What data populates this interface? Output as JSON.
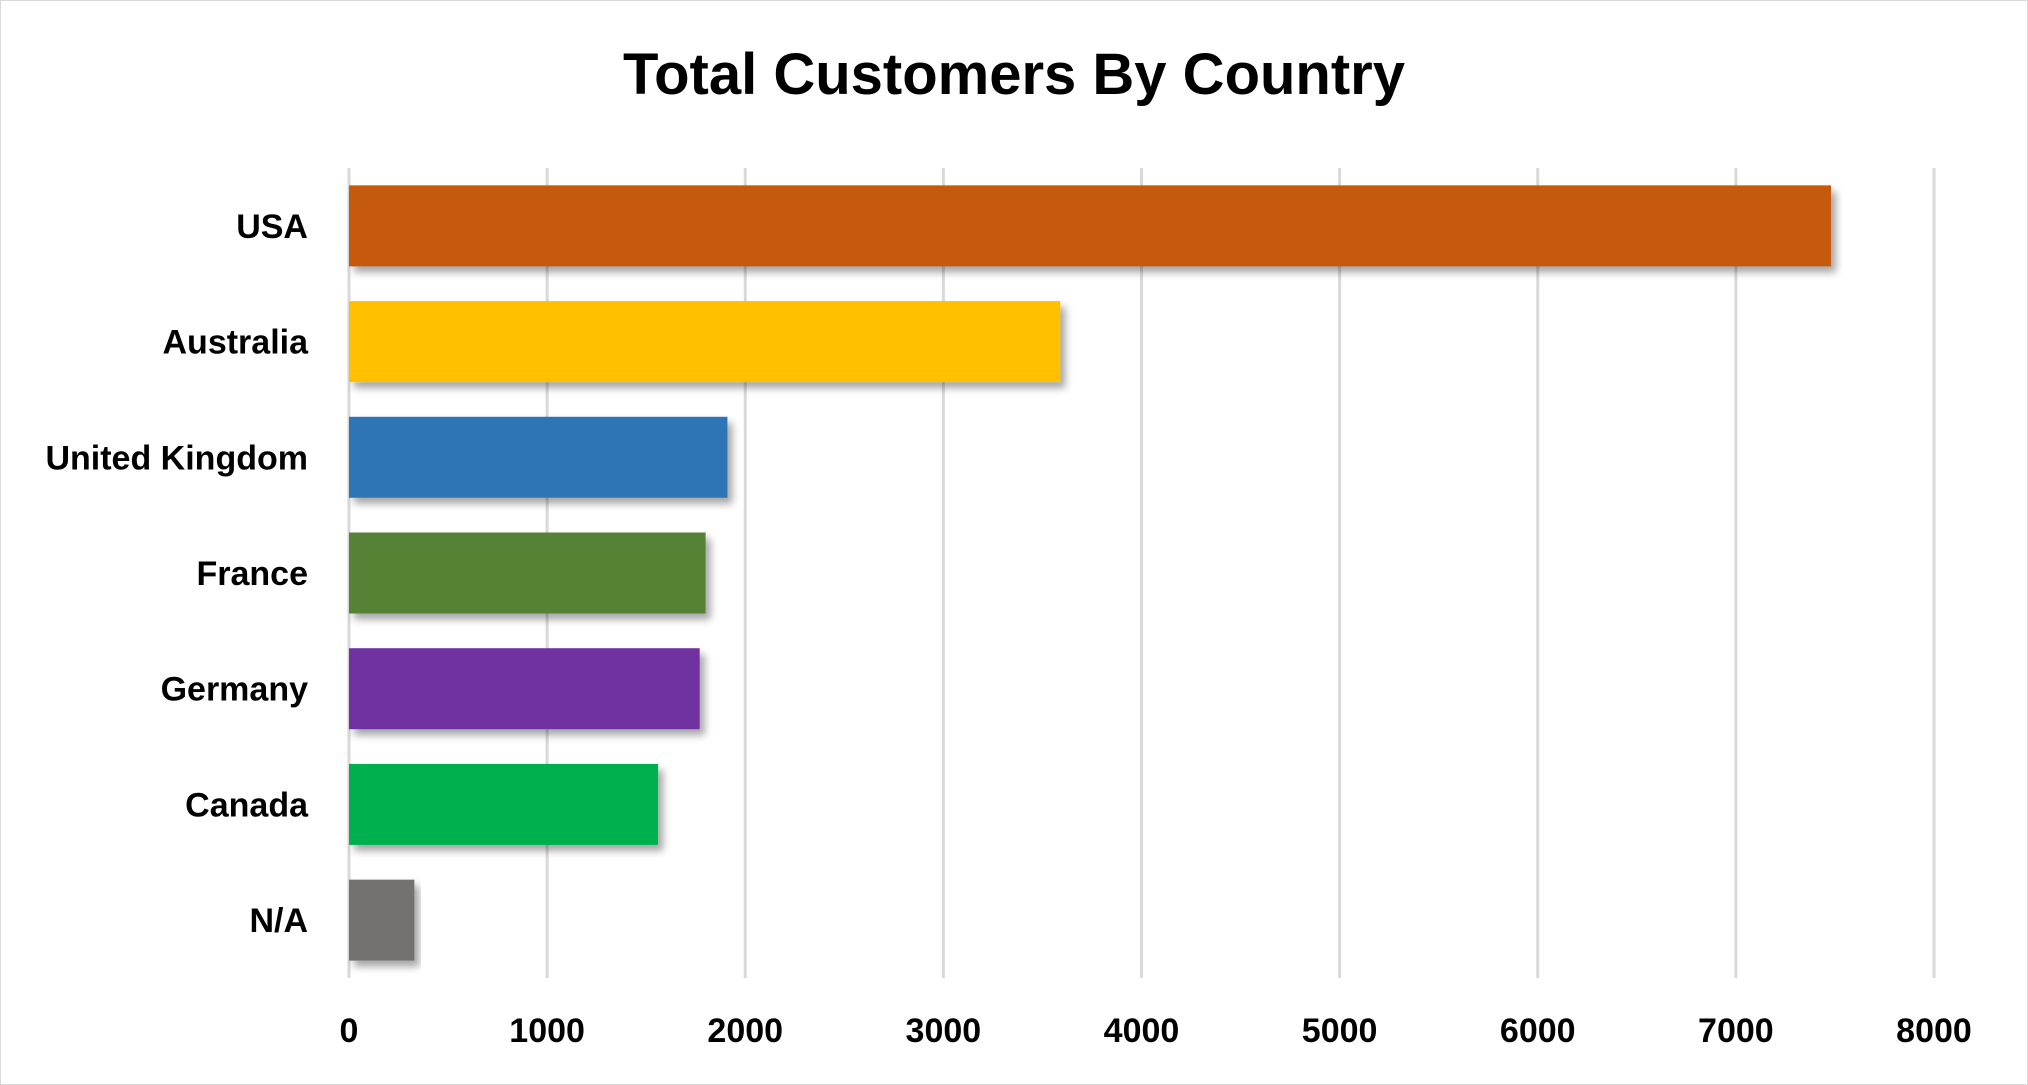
{
  "chart_data": {
    "type": "bar",
    "orientation": "horizontal",
    "title": "Total Customers By Country",
    "xlabel": "",
    "ylabel": "",
    "categories": [
      "USA",
      "Australia",
      "United Kingdom",
      "France",
      "Germany",
      "Canada",
      "N/A"
    ],
    "values": [
      7480,
      3590,
      1910,
      1800,
      1770,
      1560,
      330
    ],
    "colors": [
      "#c55a11",
      "#ffc000",
      "#2e75b6",
      "#548235",
      "#7030a0",
      "#00b050",
      "#767171"
    ],
    "xlim": [
      0,
      8000
    ],
    "xticks": [
      "0",
      "1000",
      "2000",
      "3000",
      "4000",
      "5000",
      "6000",
      "7000",
      "8000"
    ],
    "grid": true,
    "legend": "none"
  }
}
